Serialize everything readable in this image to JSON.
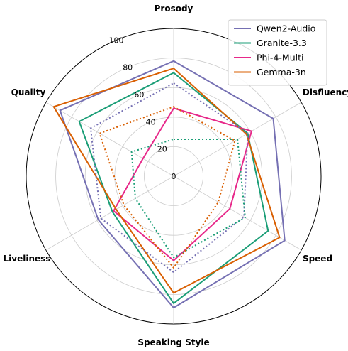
{
  "chart_data": {
    "type": "radar",
    "axes": [
      "Prosody",
      "Disfluency",
      "Speed",
      "Speaking Style",
      "Liveliness",
      "Quality"
    ],
    "rlim": [
      0,
      100
    ],
    "rticks": [
      0,
      20,
      40,
      60,
      80,
      100
    ],
    "rtick_labels": [
      "0",
      "20",
      "40",
      "60",
      "80",
      "100"
    ],
    "grid": true,
    "legend_position": "top-right",
    "series": [
      {
        "name": "Qwen2-Audio",
        "color": "#7570b3",
        "style": "solid",
        "values": [
          78,
          78,
          87,
          89,
          59,
          89
        ]
      },
      {
        "name": "Granite-3.3",
        "color": "#1b9e77",
        "style": "solid",
        "values": [
          70,
          58,
          74,
          86,
          48,
          74
        ]
      },
      {
        "name": "Phi-4-Multi",
        "color": "#e7298a",
        "style": "solid",
        "values": [
          46,
          61,
          44,
          57,
          47,
          24
        ]
      },
      {
        "name": "Gemma-3n",
        "color": "#d95f02",
        "style": "solid",
        "values": [
          73,
          57,
          83,
          79,
          45,
          94
        ]
      },
      {
        "name": "",
        "color": "#7570b3",
        "style": "dotted",
        "values": [
          63,
          58,
          55,
          65,
          57,
          65
        ]
      },
      {
        "name": "",
        "color": "#1b9e77",
        "style": "dotted",
        "values": [
          25,
          50,
          56,
          55,
          30,
          33
        ]
      },
      {
        "name": "",
        "color": "#d95f02",
        "style": "dotted",
        "values": [
          47,
          48,
          35,
          62,
          39,
          58
        ]
      }
    ]
  }
}
